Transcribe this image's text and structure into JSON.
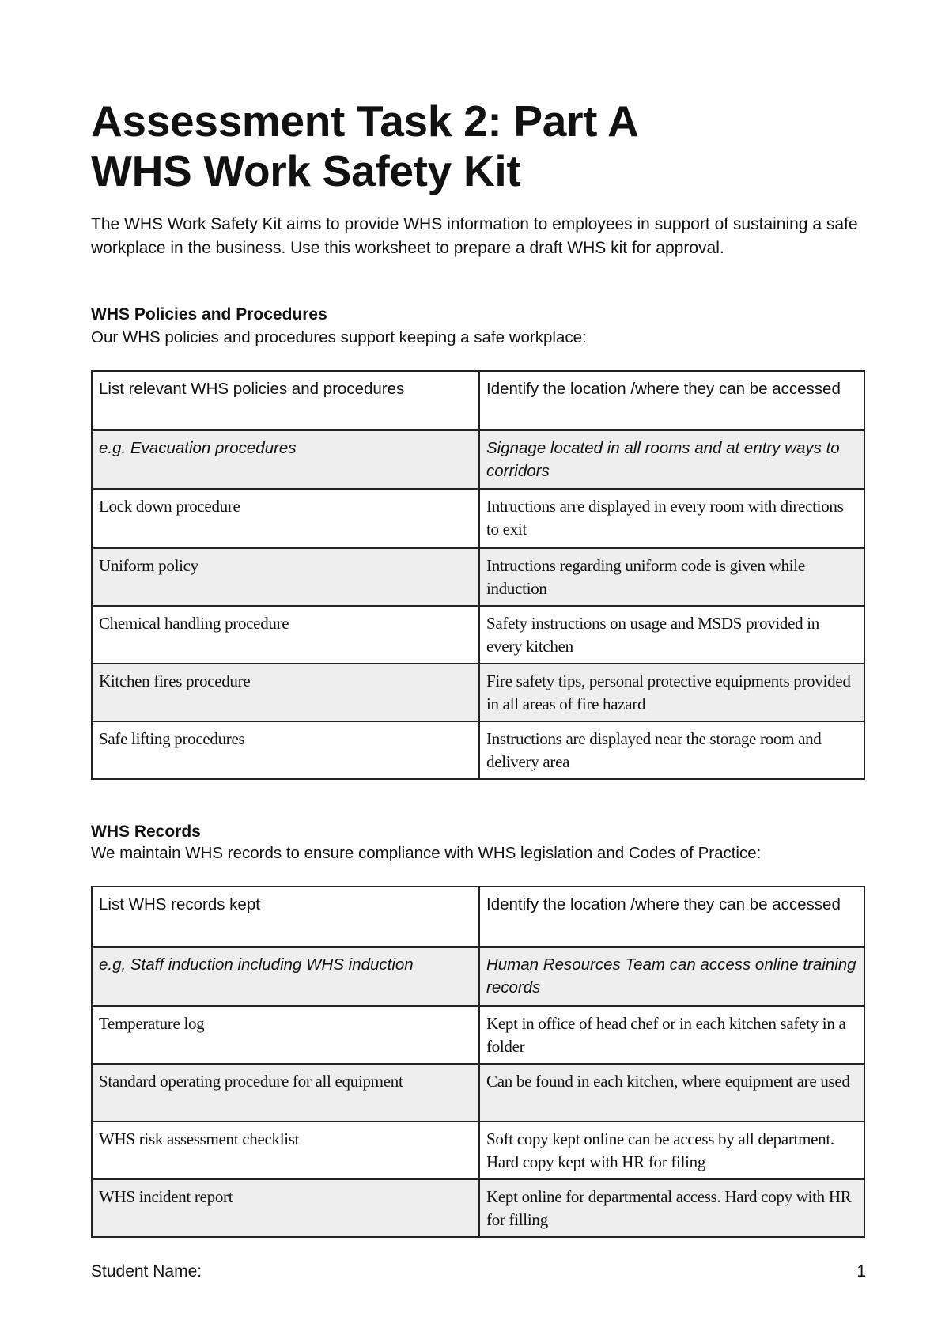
{
  "title": {
    "line1": "Assessment Task 2: Part A",
    "line2": "WHS Work Safety Kit"
  },
  "intro": "The WHS Work Safety Kit aims to provide WHS information to employees in support of sustaining a safe workplace in the business. Use this worksheet to prepare a draft WHS kit for approval.",
  "policies": {
    "heading": "WHS Policies and Procedures",
    "description": "Our WHS policies and procedures support keeping a safe workplace:",
    "table": {
      "headers": [
        "List relevant WHS policies and procedures",
        "Identify the location /where they can be accessed"
      ],
      "example": [
        "e.g. Evacuation procedures",
        "Signage located in all rooms and at entry ways to corridors"
      ],
      "rows": [
        [
          " Lock down procedure",
          "Intructions arre displayed in every room with directions to exit"
        ],
        [
          "Uniform policy",
          "Intructions regarding uniform code is given while induction"
        ],
        [
          "Chemical handling procedure",
          "Safety instructions on usage and MSDS provided in every kitchen"
        ],
        [
          "Kitchen fires procedure",
          "Fire safety tips, personal protective equipments provided in all areas of fire hazard"
        ],
        [
          "Safe lifting procedures",
          "Instructions are displayed near the storage room and delivery area"
        ]
      ]
    }
  },
  "records": {
    "heading": "WHS Records",
    "description": "We maintain WHS records to ensure compliance with WHS legislation and Codes of Practice:",
    "table": {
      "headers": [
        "List WHS records kept",
        "Identify the location /where they can be accessed"
      ],
      "example": [
        "e.g, Staff induction including WHS induction",
        " Human Resources Team can access online training records"
      ],
      "rows": [
        [
          "Temperature log",
          "Kept in office of head chef or in each kitchen safety in a folder"
        ],
        [
          "Standard operating procedure for all equipment",
          "Can be found in each kitchen, where equipment are used"
        ],
        [
          "WHS risk assessment checklist",
          "Soft copy kept online can be access by all department. Hard copy kept with HR for filing"
        ],
        [
          "WHS incident report",
          "Kept online for departmental access. Hard copy with HR for filling"
        ]
      ]
    }
  },
  "footer": {
    "student_name_label": "Student Name:",
    "page_number": "1"
  }
}
